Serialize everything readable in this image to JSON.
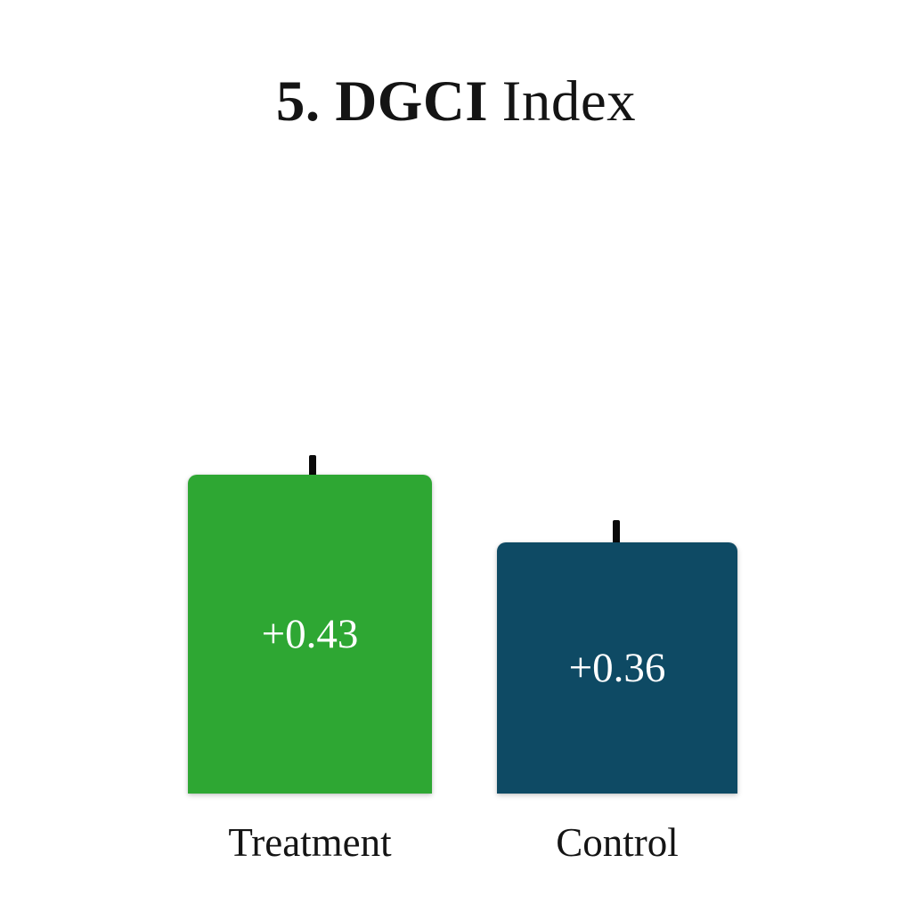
{
  "title": {
    "bold": "5. DGCI",
    "regular": "Index",
    "full": "5. DGCI Index"
  },
  "chart_data": {
    "type": "bar",
    "title": "5. DGCI Index",
    "categories": [
      "Treatment",
      "Control"
    ],
    "values": [
      0.43,
      0.36
    ],
    "value_labels": [
      "+0.43",
      "+0.36"
    ],
    "bar_colors": [
      "#2ea733",
      "#0e4a64"
    ],
    "error_bars": {
      "shown": true,
      "direction": "upper"
    },
    "xlabel": "",
    "ylabel": "",
    "legend": false,
    "grid": false,
    "axes_shown": false,
    "background": "#ffffff"
  },
  "bars": [
    {
      "label": "Treatment",
      "value": 0.43,
      "value_label": "+0.43",
      "color": "#2ea733"
    },
    {
      "label": "Control",
      "value": 0.36,
      "value_label": "+0.36",
      "color": "#0e4a64"
    }
  ],
  "colors": {
    "background": "#ffffff",
    "title_text": "#141414",
    "label_text": "#141414",
    "value_text": "#ffffff",
    "whisker": "#0a0a0a"
  }
}
